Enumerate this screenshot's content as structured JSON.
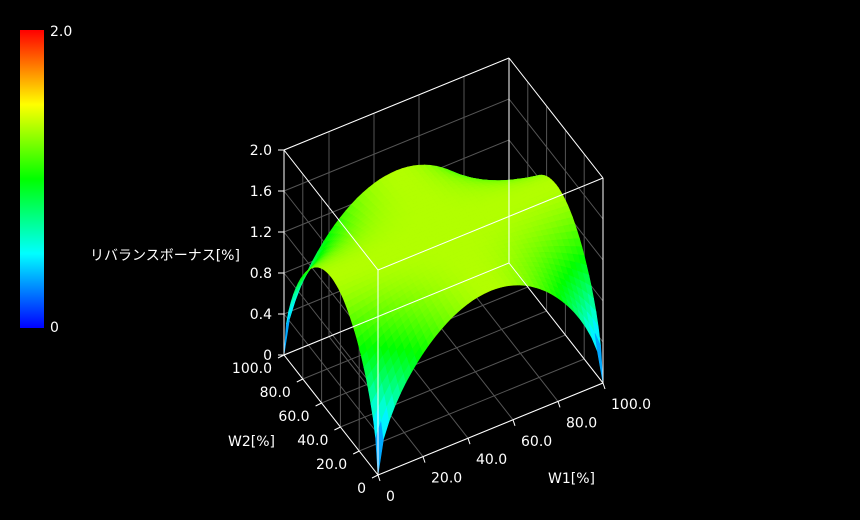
{
  "chart_data": {
    "type": "surface",
    "title": "",
    "xlabel": "W1[%]",
    "ylabel": "W2[%]",
    "zlabel": "リバランスボーナス[%]",
    "xlim": [
      0,
      100
    ],
    "ylim": [
      0,
      100
    ],
    "zlim": [
      0,
      2.0
    ],
    "x_ticks": [
      "0",
      "20.0",
      "40.0",
      "60.0",
      "80.0",
      "100.0"
    ],
    "y_ticks": [
      "0",
      "20.0",
      "40.0",
      "60.0",
      "80.0",
      "100.0"
    ],
    "z_ticks": [
      "0",
      "0.4",
      "0.8",
      "1.2",
      "1.6",
      "2.0"
    ],
    "colorbar": {
      "min_label": "0",
      "max_label": "2.0",
      "range": [
        0,
        2.0
      ]
    },
    "surface": {
      "description": "dome-shaped rebalance bonus surface, zero at corners, max near center",
      "peak_value": 1.35,
      "corner_values": [
        0,
        0,
        0,
        0
      ],
      "x": [
        0,
        10,
        20,
        30,
        40,
        50,
        60,
        70,
        80,
        90,
        100
      ],
      "y": [
        0,
        10,
        20,
        30,
        40,
        50,
        60,
        70,
        80,
        90,
        100
      ]
    },
    "grid": true,
    "background": "#000000"
  }
}
